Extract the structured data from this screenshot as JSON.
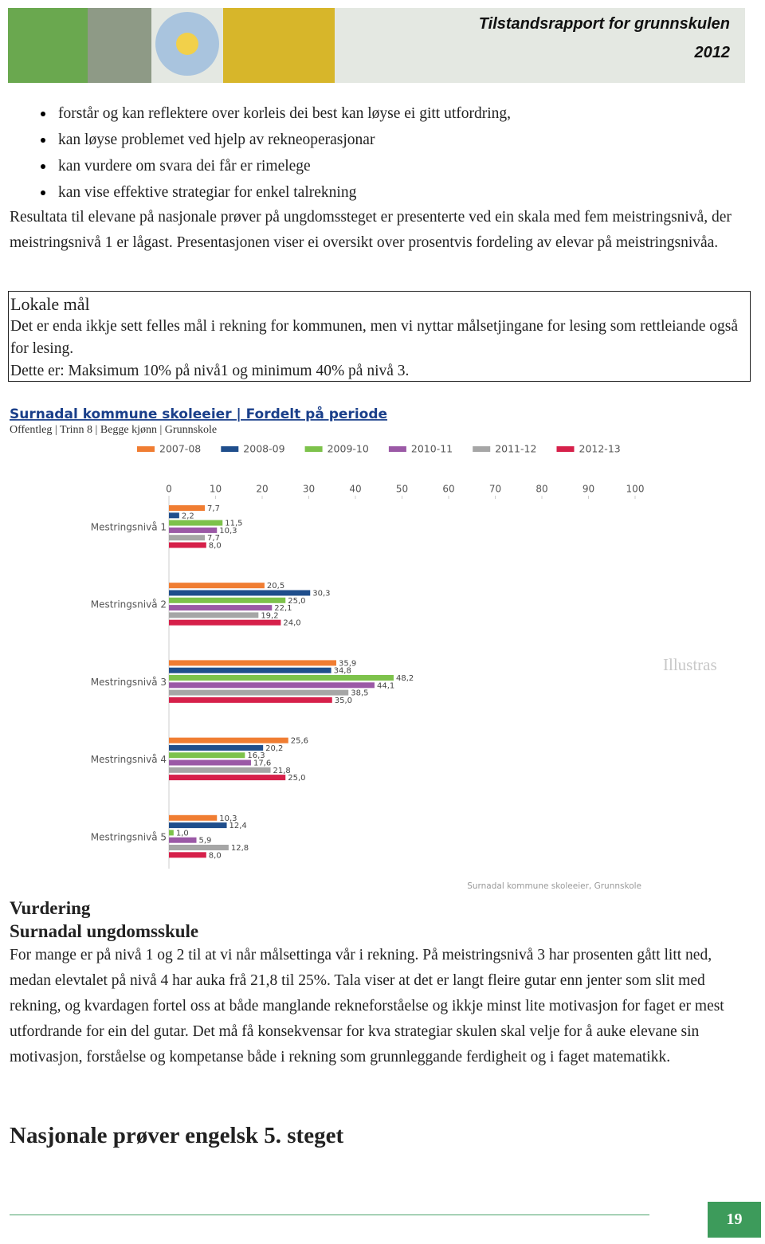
{
  "header": {
    "title": "Tilstandsrapport for grunnskulen",
    "year": "2012"
  },
  "bullets": [
    "forstår og kan reflektere over korleis dei best kan løyse ei gitt utfordring,",
    "kan løyse problemet ved hjelp av rekneoperasjonar",
    "kan vurdere om svara dei får er rimelege",
    "kan vise effektive strategiar for enkel talrekning"
  ],
  "intro": "Resultata til elevane på nasjonale prøver på ungdomssteget er presenterte ved ein skala med fem meistringsnivå, der meistringsnivå 1 er lågast. Presentasjonen viser ei oversikt over prosentvis fordeling av elevar på meistringsnivåa.",
  "box": {
    "title": "Lokale mål",
    "text": "Det er enda ikkje sett felles mål i rekning for kommunen, men vi nyttar målsetjingane for lesing som rettleiande også for lesing.",
    "goal": "Dette er: Maksimum 10% på nivå1 og minimum 40% på nivå 3."
  },
  "chart_data": {
    "type": "hbar",
    "title": "Surnadal kommune skoleeier | Fordelt på periode",
    "subtitle": "Offentleg | Trinn 8 | Begge kjønn | Grunnskole",
    "source": "Surnadal kommune skoleeier, Grunnskole",
    "categories": [
      "Mestringsnivå 1",
      "Mestringsnivå 2",
      "Mestringsnivå 3",
      "Mestringsnivå 4",
      "Mestringsnivå 5"
    ],
    "xlim": [
      0,
      100
    ],
    "xticks": [
      0,
      10,
      20,
      30,
      40,
      50,
      60,
      70,
      80,
      90,
      100
    ],
    "series": [
      {
        "name": "2007-08",
        "color": "#f07d32",
        "values": [
          7.7,
          20.5,
          35.9,
          25.6,
          10.3
        ],
        "value_labels": [
          "7,7",
          "20,5",
          "35,9",
          "25,6",
          "10,3"
        ]
      },
      {
        "name": "2008-09",
        "color": "#1f4e8c",
        "values": [
          2.2,
          30.3,
          34.8,
          20.2,
          12.4
        ],
        "value_labels": [
          "2,2",
          "30,3",
          "34,8",
          "20,2",
          "12,4"
        ]
      },
      {
        "name": "2009-10",
        "color": "#7dc24b",
        "values": [
          11.5,
          25.0,
          48.2,
          16.3,
          1.0
        ],
        "value_labels": [
          "11,5",
          "25,0",
          "48,2",
          "16,3",
          "1,0"
        ]
      },
      {
        "name": "2010-11",
        "color": "#9b59a6",
        "values": [
          10.3,
          22.1,
          44.1,
          17.6,
          5.9
        ],
        "value_labels": [
          "10,3",
          "22,1",
          "44,1",
          "17,6",
          "5,9"
        ]
      },
      {
        "name": "2011-12",
        "color": "#a6a6a6",
        "values": [
          7.7,
          19.2,
          38.5,
          21.8,
          12.8
        ],
        "value_labels": [
          "7,7",
          "19,2",
          "38,5",
          "21,8",
          "12,8"
        ]
      },
      {
        "name": "2012-13",
        "color": "#d6204a",
        "values": [
          8.0,
          24.0,
          35.0,
          25.0,
          8.0
        ],
        "value_labels": [
          "8,0",
          "24,0",
          "35,0",
          "25,0",
          "8,0"
        ]
      }
    ]
  },
  "watermark": "Illustras",
  "assessment": {
    "heading": "Vurdering",
    "subheading": "Surnadal ungdomsskule",
    "text": "For mange er på nivå 1 og 2 til at vi når målsettinga vår i rekning. På meistringsnivå 3 har prosenten gått litt ned, medan elevtalet på nivå 4 har auka frå 21,8 til 25%. Tala viser at det er langt fleire gutar enn jenter som slit med rekning, og kvardagen fortel oss at både manglande rekneforståelse og ikkje minst lite motivasjon for faget er mest utfordrande for ein del gutar. Det må få konsekvensar for kva strategiar skulen skal velje for å auke elevane sin motivasjon, forståelse og kompetanse både i rekning som grunnleggande ferdigheit og i faget matematikk."
  },
  "next_heading": "Nasjonale prøver engelsk 5. steget",
  "footer": {
    "page": "19"
  }
}
